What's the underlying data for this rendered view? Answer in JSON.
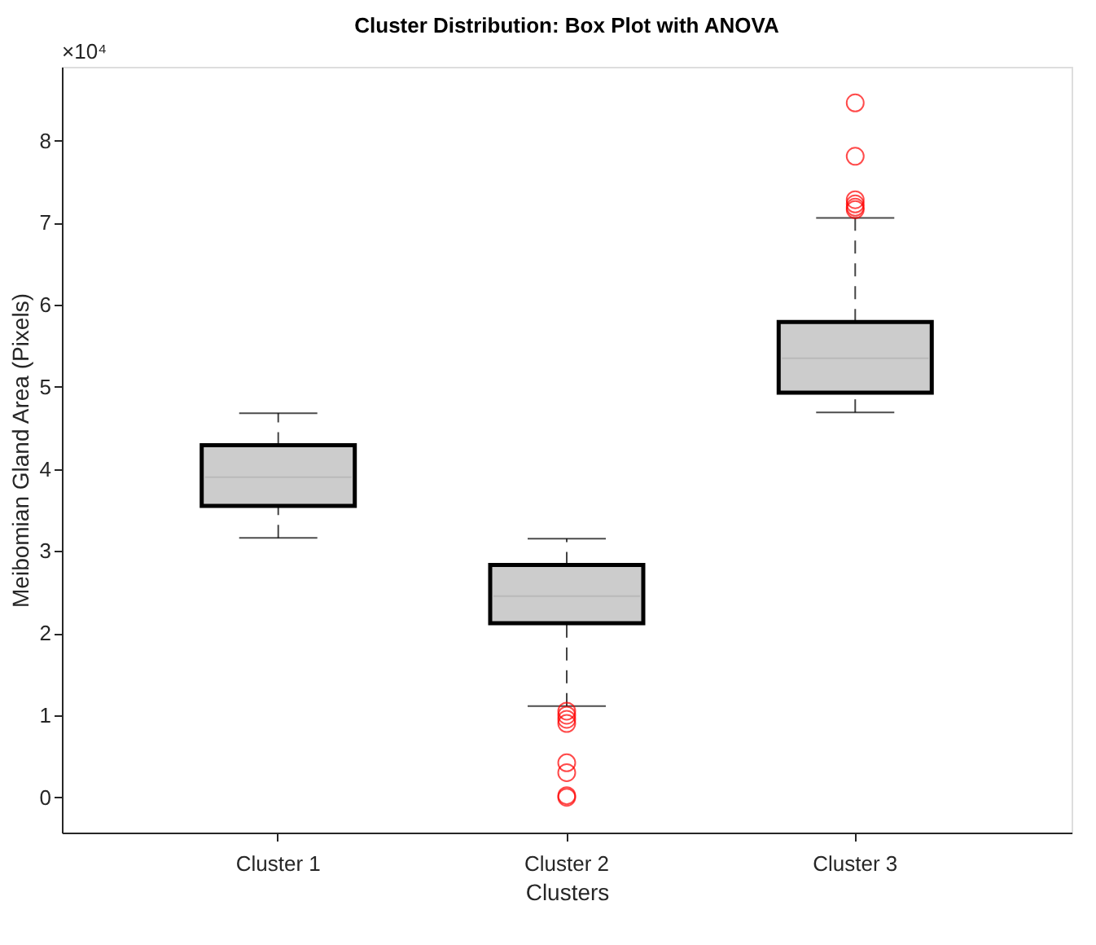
{
  "chart_data": {
    "type": "box",
    "title": "Cluster Distribution: Box Plot with ANOVA",
    "xlabel": "Clusters",
    "ylabel": "Meibomian Gland Area (Pixels)",
    "categories": [
      "Cluster 1",
      "Cluster 2",
      "Cluster 3"
    ],
    "boxes": [
      {
        "low": 3.16,
        "q1": 3.55,
        "median": 3.9,
        "q3": 4.29,
        "high": 4.68
      },
      {
        "low": 1.11,
        "q1": 2.12,
        "median": 2.45,
        "q3": 2.83,
        "high": 3.15,
        "outliers": [
          1.05,
          1.0,
          0.95,
          0.9,
          0.42,
          0.3,
          0.02,
          0.0
        ]
      },
      {
        "low": 4.69,
        "q1": 4.93,
        "median": 5.35,
        "q3": 5.79,
        "high": 7.06,
        "outliers": [
          8.46,
          7.81,
          7.28,
          7.23,
          7.19,
          7.16
        ]
      }
    ],
    "color": "#cccccc",
    "ylim": [
      -0.43,
      8.9
    ],
    "yticks": [
      0,
      1,
      2,
      3,
      4,
      5,
      6,
      7,
      8
    ],
    "annotations": [
      "×10⁴"
    ],
    "grid": false
  }
}
